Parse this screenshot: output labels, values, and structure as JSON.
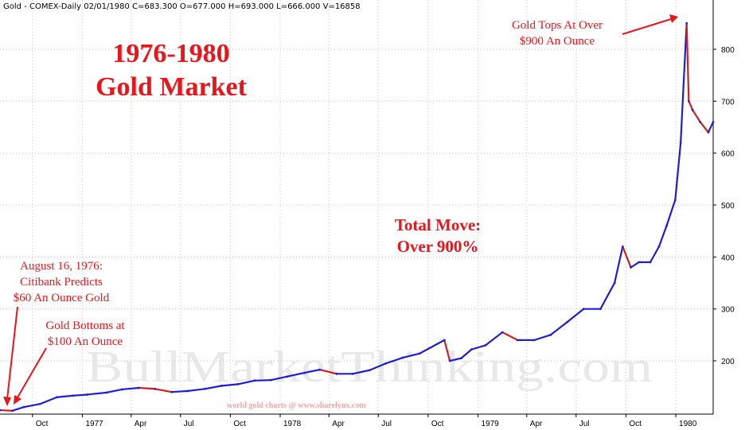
{
  "header": "Gold - COMEX-Daily   02/01/1980  C=683.300  O=677.000  H=693.000  L=666.000  V=16858",
  "title_line1": "1976-1980",
  "title_line2": "Gold Market",
  "annotations": {
    "citibank": [
      "August 16, 1976:",
      "Citibank Predicts",
      "$60 An Ounce Gold"
    ],
    "bottom": [
      "Gold Bottoms at",
      "$100 An Ounce"
    ],
    "total_move": [
      "Total Move:",
      "Over 900%"
    ],
    "top": [
      "Gold Tops At Over",
      "$900 An Ounce"
    ]
  },
  "watermark": "BullMarketThinking.com",
  "credit": "world gold charts @ www.sharelynx.com",
  "colors": {
    "annotation": "#e8161b",
    "up_bar": "#1f1fd0",
    "down_bar": "#d01f1f",
    "grid": "#c4c4c4"
  },
  "chart_data": {
    "type": "line",
    "symbol": "Gold - COMEX-Daily",
    "y_ticks": [
      200,
      300,
      400,
      500,
      600,
      700,
      800
    ],
    "y_range": [
      100,
      880
    ],
    "y_axis_position": "right",
    "x_ticks": [
      "Oct",
      "1977",
      "Apr",
      "Jul",
      "Oct",
      "1978",
      "Apr",
      "Jul",
      "Oct",
      "1979",
      "Apr",
      "Jul",
      "Oct",
      "1980"
    ],
    "x_range": [
      "1976-08-02",
      "1980-03-10"
    ],
    "grid": true,
    "series": [
      {
        "dates": [
          "1976-08-02",
          "1976-08-25",
          "1976-09-15",
          "1976-10-15",
          "1976-11-15",
          "1976-12-15",
          "1977-01-10",
          "1977-02-15",
          "1977-03-15",
          "1977-04-15",
          "1977-05-15",
          "1977-06-15",
          "1977-07-15",
          "1977-08-15",
          "1977-09-15",
          "1977-10-15",
          "1977-11-15",
          "1977-12-15",
          "1978-01-15",
          "1978-02-15",
          "1978-03-15",
          "1978-04-15",
          "1978-05-15",
          "1978-06-15",
          "1978-07-15",
          "1978-08-15",
          "1978-09-15",
          "1978-10-31",
          "1978-11-10",
          "1978-12-01",
          "1978-12-20",
          "1979-01-15",
          "1979-02-15",
          "1979-03-15",
          "1979-04-15",
          "1979-05-15",
          "1979-06-15",
          "1979-07-15",
          "1979-08-15",
          "1979-09-10",
          "1979-09-25",
          "1979-10-10",
          "1979-10-25",
          "1979-11-15",
          "1979-12-01",
          "1979-12-15",
          "1979-12-31",
          "1980-01-10",
          "1980-01-21",
          "1980-01-25",
          "1980-02-01",
          "1980-02-15",
          "1980-03-01",
          "1980-03-10"
        ],
        "values": [
          105,
          104,
          111,
          117,
          130,
          133,
          135,
          139,
          145,
          148,
          146,
          140,
          142,
          146,
          152,
          155,
          162,
          163,
          170,
          177,
          183,
          175,
          175,
          182,
          195,
          206,
          214,
          240,
          200,
          205,
          222,
          230,
          255,
          240,
          240,
          250,
          275,
          300,
          300,
          350,
          420,
          380,
          390,
          390,
          420,
          460,
          510,
          620,
          850,
          700,
          683,
          660,
          640,
          660
        ]
      }
    ]
  }
}
